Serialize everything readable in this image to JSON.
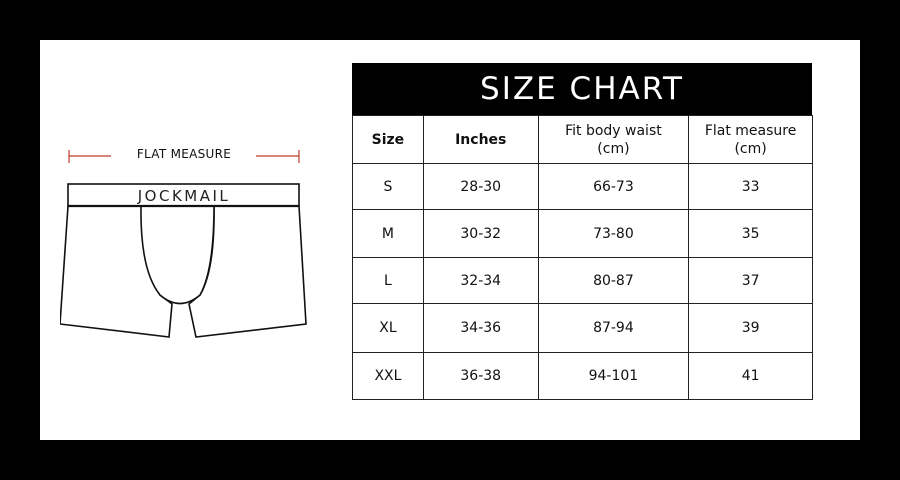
{
  "illustration": {
    "flat_measure_label": "FLAT MEASURE",
    "brand_waistband": "JOCKMAIL",
    "measure_line_color": "#c0392b"
  },
  "size_chart": {
    "title": "SIZE CHART",
    "headers": [
      {
        "line1": "Size",
        "line2": ""
      },
      {
        "line1": "Inches",
        "line2": ""
      },
      {
        "line1": "Fit body waist",
        "line2": "(cm)"
      },
      {
        "line1": "Flat measure",
        "line2": "(cm)"
      }
    ],
    "rows": [
      [
        "S",
        "28-30",
        "66-73",
        "33"
      ],
      [
        "M",
        "30-32",
        "73-80",
        "35"
      ],
      [
        "L",
        "32-34",
        "80-87",
        "37"
      ],
      [
        "XL",
        "34-36",
        "87-94",
        "39"
      ],
      [
        "XXL",
        "36-38",
        "94-101",
        "41"
      ]
    ]
  }
}
